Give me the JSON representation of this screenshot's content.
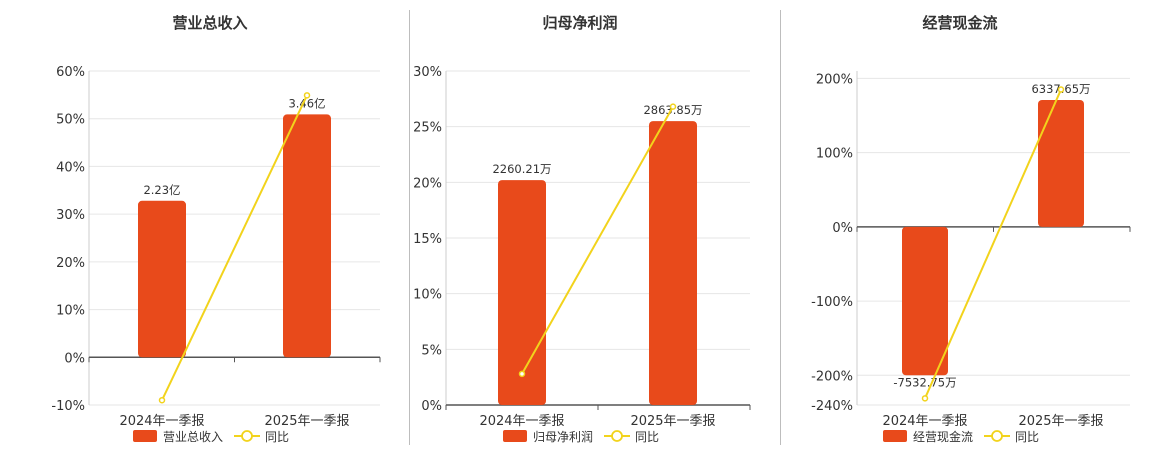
{
  "colors": {
    "bar": "#e84a1b",
    "line": "#f2d31c",
    "grid": "#e6e6e6",
    "axis": "#555555",
    "text": "#333333"
  },
  "legend_line_label": "同比",
  "chart_data": [
    {
      "type": "bar",
      "title": "营业总收入",
      "categories": [
        "2024年一季报",
        "2025年一季报"
      ],
      "series": [
        {
          "name": "营业总收入",
          "type": "bar",
          "values": [
            32.8,
            50.9
          ],
          "labels": [
            "2.23亿",
            "3.46亿"
          ]
        },
        {
          "name": "同比",
          "type": "line",
          "values": [
            -9.0,
            54.9
          ]
        }
      ],
      "ylim": [
        -10,
        60
      ],
      "yticks": [
        -10,
        0,
        10,
        20,
        30,
        40,
        50,
        60
      ],
      "ytick_labels": [
        "-10%",
        "0%",
        "10%",
        "20%",
        "30%",
        "40%",
        "50%",
        "60%"
      ],
      "grid": true,
      "legend": "bottom"
    },
    {
      "type": "bar",
      "title": "归母净利润",
      "categories": [
        "2024年一季报",
        "2025年一季报"
      ],
      "series": [
        {
          "name": "归母净利润",
          "type": "bar",
          "values": [
            20.2,
            25.5
          ],
          "labels": [
            "2260.21万",
            "2863.85万"
          ]
        },
        {
          "name": "同比",
          "type": "line",
          "values": [
            2.8,
            26.8
          ]
        }
      ],
      "ylim": [
        0,
        30
      ],
      "yticks": [
        0,
        5,
        10,
        15,
        20,
        25,
        30
      ],
      "ytick_labels": [
        "0%",
        "5%",
        "10%",
        "15%",
        "20%",
        "25%",
        "30%"
      ],
      "grid": true,
      "legend": "bottom"
    },
    {
      "type": "bar",
      "title": "经营现金流",
      "categories": [
        "2024年一季报",
        "2025年一季报"
      ],
      "series": [
        {
          "name": "经营现金流",
          "type": "bar",
          "values": [
            -200,
            171
          ],
          "labels": [
            "-7532.75万",
            "6337.65万"
          ]
        },
        {
          "name": "同比",
          "type": "line",
          "values": [
            -231,
            185
          ]
        }
      ],
      "ylim": [
        -240,
        210
      ],
      "yticks": [
        -240,
        -200,
        -100,
        0,
        100,
        200
      ],
      "ytick_labels": [
        "-240%",
        "-200%",
        "-100%",
        "0%",
        "100%",
        "200%"
      ],
      "grid": true,
      "legend": "bottom"
    }
  ]
}
